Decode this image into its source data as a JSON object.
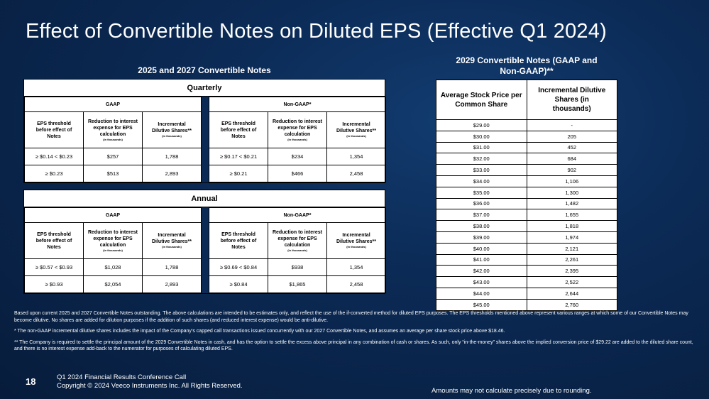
{
  "title": "Effect of Convertible Notes on Diluted EPS (Effective Q1 2024)",
  "left_section_title": "2025 and 2027 Convertible Notes",
  "right_section_title_line1": "2029 Convertible Notes (GAAP and",
  "right_section_title_line2": "Non-GAAP)**",
  "col_headers": {
    "threshold_l1": "EPS threshold",
    "threshold_l2": "before effect of",
    "threshold_l3": "Notes",
    "reduction_l1": "Reduction to interest",
    "reduction_l2": "expense for EPS",
    "reduction_l3": "calculation",
    "reduction_unit": "(in thousands)",
    "incremental_l1": "Incremental",
    "incremental_gaap_l2": "Dilutive Shares**",
    "incremental_nongaap_l2": "Dilutive Shares**",
    "incremental_unit": "(in thousands)"
  },
  "quarterly": {
    "label": "Quarterly",
    "gaap": {
      "label": "GAAP",
      "rows": [
        {
          "threshold": "≥  $0.14 < $0.23",
          "reduction": "$257",
          "shares": "1,788"
        },
        {
          "threshold": "≥  $0.23",
          "reduction": "$513",
          "shares": "2,893"
        }
      ]
    },
    "nongaap": {
      "label": "Non-GAAP*",
      "rows": [
        {
          "threshold": "≥  $0.17 < $0.21",
          "reduction": "$234",
          "shares": "1,354"
        },
        {
          "threshold": "≥  $0.21",
          "reduction": "$466",
          "shares": "2,458"
        }
      ]
    }
  },
  "annual": {
    "label": "Annual",
    "gaap": {
      "label": "GAAP",
      "rows": [
        {
          "threshold": "≥  $0.57 < $0.93",
          "reduction": "$1,028",
          "shares": "1,788"
        },
        {
          "threshold": "≥  $0.93",
          "reduction": "$2,054",
          "shares": "2,893"
        }
      ]
    },
    "nongaap": {
      "label": "Non-GAAP*",
      "rows": [
        {
          "threshold": "≥  $0.69 < $0.84",
          "reduction": "$938",
          "shares": "1,354"
        },
        {
          "threshold": "≥  $0.84",
          "reduction": "$1,865",
          "shares": "2,458"
        }
      ]
    }
  },
  "table_2029": {
    "header_price_l1": "Average Stock Price per",
    "header_price_l2": "Common Share",
    "header_shares_l1": "Incremental Dilutive",
    "header_shares_l2": "Shares (in",
    "header_shares_l3": "thousands)",
    "rows": [
      {
        "price": "$29.00",
        "shares": "-"
      },
      {
        "price": "$30.00",
        "shares": "205"
      },
      {
        "price": "$31.00",
        "shares": "452"
      },
      {
        "price": "$32.00",
        "shares": "684"
      },
      {
        "price": "$33.00",
        "shares": "902"
      },
      {
        "price": "$34.00",
        "shares": "1,106"
      },
      {
        "price": "$35.00",
        "shares": "1,300"
      },
      {
        "price": "$36.00",
        "shares": "1,482"
      },
      {
        "price": "$37.00",
        "shares": "1,655"
      },
      {
        "price": "$38.00",
        "shares": "1,818"
      },
      {
        "price": "$39.00",
        "shares": "1,974"
      },
      {
        "price": "$40.00",
        "shares": "2,121"
      },
      {
        "price": "$41.00",
        "shares": "2,261"
      },
      {
        "price": "$42.00",
        "shares": "2,395"
      },
      {
        "price": "$43.00",
        "shares": "2,522"
      },
      {
        "price": "$44.00",
        "shares": "2,644"
      },
      {
        "price": "$45.00",
        "shares": "2,760"
      }
    ]
  },
  "notes": {
    "n1": "Based upon current 2025 and 2027 Convertible Notes outstanding. The above calculations are intended to be estimates only, and reflect the use of the if-converted method for diluted EPS purposes. The EPS thresholds mentioned above represent various ranges at which some of our Convertible Notes may become dilutive. No shares are added for dilution purposes if the addition of such shares (and reduced interest expense) would be anti-dilutive.",
    "n2": "* The non-GAAP incremental dilutive shares includes the impact of the Company’s capped call transactions issued concurrently with our 2027 Convertible Notes, and assumes an average per share stock price above $18.46.",
    "n3": "** The Company is required to settle the principal amount of the 2029 Convertible Notes in cash, and has the option to settle the excess above principal in any combination of cash or shares. As such, only “in-the-money” shares above the implied conversion price of $29.22 are added to the diluted share count, and there is no interest expense add-back to the numerator for purposes of calculating diluted EPS."
  },
  "footer": {
    "page_number": "18",
    "line1": "Q1 2024 Financial Results Conference Call",
    "line2": "Copyright © 2024 Veeco Instruments Inc. All Rights Reserved.",
    "rounding": "Amounts may not calculate precisely due to rounding."
  }
}
